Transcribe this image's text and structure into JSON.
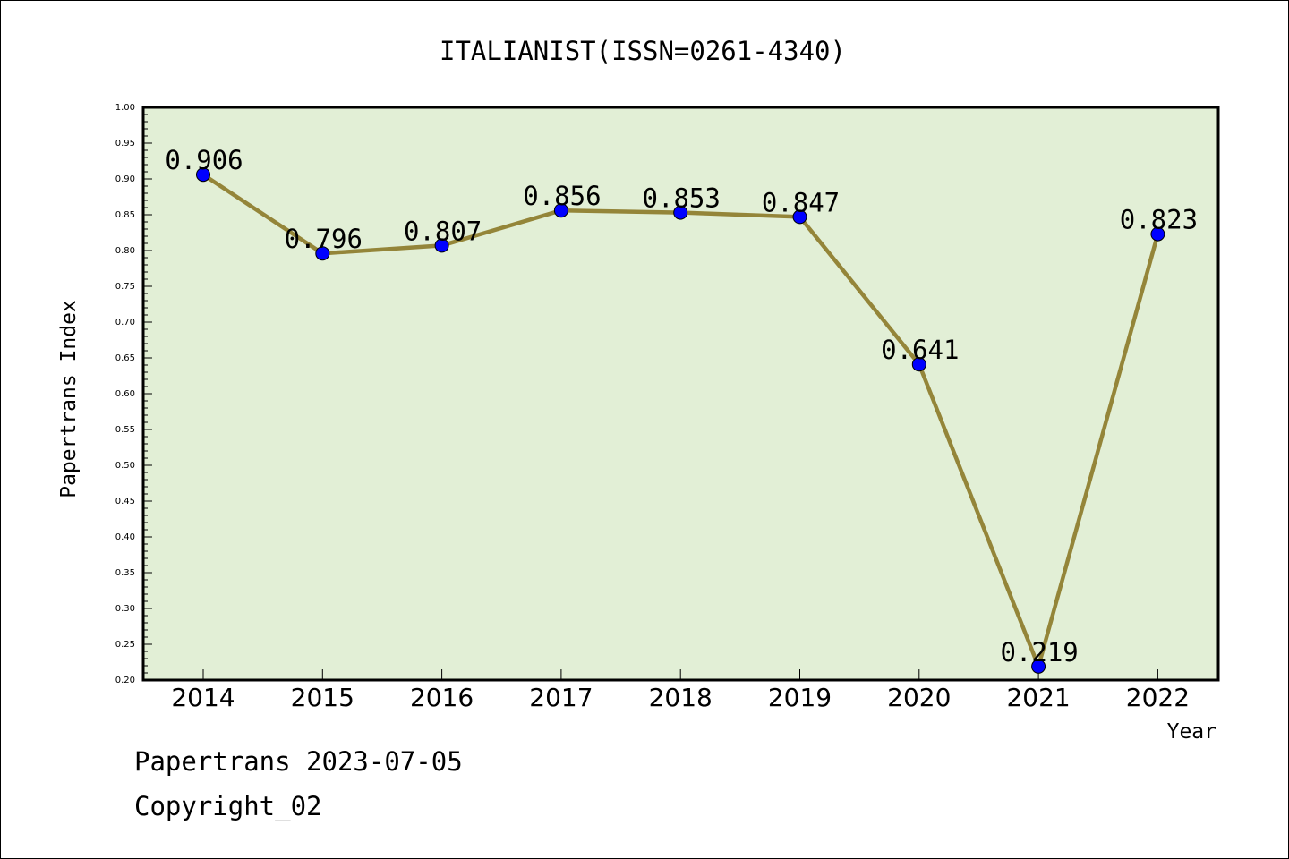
{
  "chart_data": {
    "type": "line",
    "title": "ITALIANIST(ISSN=0261-4340)",
    "xlabel": "Year",
    "ylabel": "Papertrans Index",
    "categories": [
      "2014",
      "2015",
      "2016",
      "2017",
      "2018",
      "2019",
      "2020",
      "2021",
      "2022"
    ],
    "series": [
      {
        "values": [
          0.906,
          0.796,
          0.807,
          0.856,
          0.853,
          0.847,
          0.641,
          0.219,
          0.823
        ]
      }
    ],
    "data_labels": [
      "0.906",
      "0.796",
      "0.807",
      "0.856",
      "0.853",
      "0.847",
      "0.641",
      "0.219",
      "0.823"
    ],
    "ylim": [
      0.2,
      1.0
    ],
    "yticks": [
      "0.20",
      "0.25",
      "0.30",
      "0.35",
      "0.40",
      "0.45",
      "0.50",
      "0.55",
      "0.60",
      "0.65",
      "0.70",
      "0.75",
      "0.80",
      "0.85",
      "0.90",
      "0.95",
      "1.00"
    ],
    "grid": false,
    "colors": {
      "plot_background": "#e2efd6",
      "line": "#948539",
      "marker": "#0000ff"
    }
  },
  "footer": {
    "line1": "Papertrans 2023-07-05",
    "line2": "Copyright_02"
  }
}
